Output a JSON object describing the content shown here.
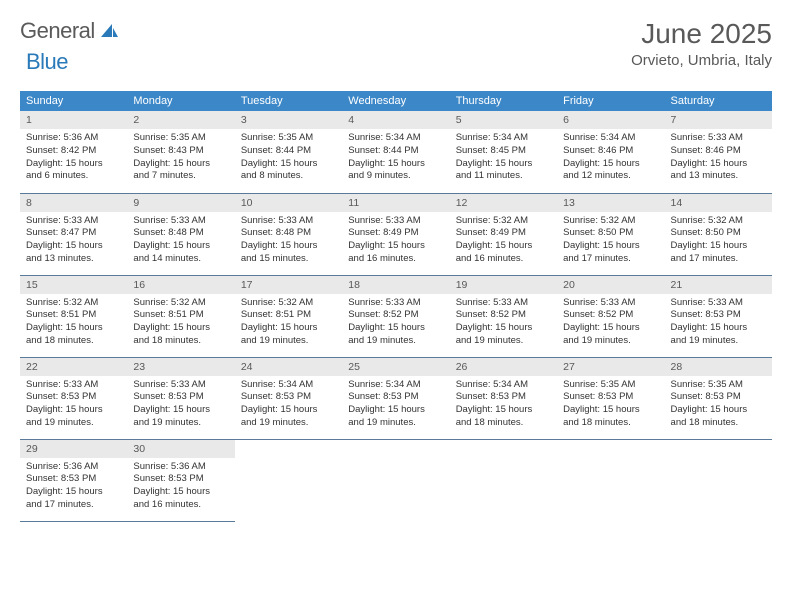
{
  "logo": {
    "general": "General",
    "blue": "Blue"
  },
  "title": "June 2025",
  "subtitle": "Orvieto, Umbria, Italy",
  "colors": {
    "header_bg": "#3c87c7",
    "header_text": "#ffffff",
    "daynum_bg": "#e9e9e9",
    "daynum_text": "#595959",
    "row_border": "#5b7a9a",
    "title_color": "#595959",
    "logo_general": "#5a5a5a",
    "logo_blue": "#2a7ab9",
    "body_text": "#333333",
    "page_bg": "#ffffff"
  },
  "typography": {
    "title_fontsize": 28,
    "subtitle_fontsize": 15,
    "dayheader_fontsize": 11,
    "daynum_fontsize": 10.5,
    "body_fontsize": 9.5
  },
  "weekdays": [
    "Sunday",
    "Monday",
    "Tuesday",
    "Wednesday",
    "Thursday",
    "Friday",
    "Saturday"
  ],
  "weeks": [
    [
      {
        "n": "1",
        "sr": "Sunrise: 5:36 AM",
        "ss": "Sunset: 8:42 PM",
        "d1": "Daylight: 15 hours",
        "d2": "and 6 minutes."
      },
      {
        "n": "2",
        "sr": "Sunrise: 5:35 AM",
        "ss": "Sunset: 8:43 PM",
        "d1": "Daylight: 15 hours",
        "d2": "and 7 minutes."
      },
      {
        "n": "3",
        "sr": "Sunrise: 5:35 AM",
        "ss": "Sunset: 8:44 PM",
        "d1": "Daylight: 15 hours",
        "d2": "and 8 minutes."
      },
      {
        "n": "4",
        "sr": "Sunrise: 5:34 AM",
        "ss": "Sunset: 8:44 PM",
        "d1": "Daylight: 15 hours",
        "d2": "and 9 minutes."
      },
      {
        "n": "5",
        "sr": "Sunrise: 5:34 AM",
        "ss": "Sunset: 8:45 PM",
        "d1": "Daylight: 15 hours",
        "d2": "and 11 minutes."
      },
      {
        "n": "6",
        "sr": "Sunrise: 5:34 AM",
        "ss": "Sunset: 8:46 PM",
        "d1": "Daylight: 15 hours",
        "d2": "and 12 minutes."
      },
      {
        "n": "7",
        "sr": "Sunrise: 5:33 AM",
        "ss": "Sunset: 8:46 PM",
        "d1": "Daylight: 15 hours",
        "d2": "and 13 minutes."
      }
    ],
    [
      {
        "n": "8",
        "sr": "Sunrise: 5:33 AM",
        "ss": "Sunset: 8:47 PM",
        "d1": "Daylight: 15 hours",
        "d2": "and 13 minutes."
      },
      {
        "n": "9",
        "sr": "Sunrise: 5:33 AM",
        "ss": "Sunset: 8:48 PM",
        "d1": "Daylight: 15 hours",
        "d2": "and 14 minutes."
      },
      {
        "n": "10",
        "sr": "Sunrise: 5:33 AM",
        "ss": "Sunset: 8:48 PM",
        "d1": "Daylight: 15 hours",
        "d2": "and 15 minutes."
      },
      {
        "n": "11",
        "sr": "Sunrise: 5:33 AM",
        "ss": "Sunset: 8:49 PM",
        "d1": "Daylight: 15 hours",
        "d2": "and 16 minutes."
      },
      {
        "n": "12",
        "sr": "Sunrise: 5:32 AM",
        "ss": "Sunset: 8:49 PM",
        "d1": "Daylight: 15 hours",
        "d2": "and 16 minutes."
      },
      {
        "n": "13",
        "sr": "Sunrise: 5:32 AM",
        "ss": "Sunset: 8:50 PM",
        "d1": "Daylight: 15 hours",
        "d2": "and 17 minutes."
      },
      {
        "n": "14",
        "sr": "Sunrise: 5:32 AM",
        "ss": "Sunset: 8:50 PM",
        "d1": "Daylight: 15 hours",
        "d2": "and 17 minutes."
      }
    ],
    [
      {
        "n": "15",
        "sr": "Sunrise: 5:32 AM",
        "ss": "Sunset: 8:51 PM",
        "d1": "Daylight: 15 hours",
        "d2": "and 18 minutes."
      },
      {
        "n": "16",
        "sr": "Sunrise: 5:32 AM",
        "ss": "Sunset: 8:51 PM",
        "d1": "Daylight: 15 hours",
        "d2": "and 18 minutes."
      },
      {
        "n": "17",
        "sr": "Sunrise: 5:32 AM",
        "ss": "Sunset: 8:51 PM",
        "d1": "Daylight: 15 hours",
        "d2": "and 19 minutes."
      },
      {
        "n": "18",
        "sr": "Sunrise: 5:33 AM",
        "ss": "Sunset: 8:52 PM",
        "d1": "Daylight: 15 hours",
        "d2": "and 19 minutes."
      },
      {
        "n": "19",
        "sr": "Sunrise: 5:33 AM",
        "ss": "Sunset: 8:52 PM",
        "d1": "Daylight: 15 hours",
        "d2": "and 19 minutes."
      },
      {
        "n": "20",
        "sr": "Sunrise: 5:33 AM",
        "ss": "Sunset: 8:52 PM",
        "d1": "Daylight: 15 hours",
        "d2": "and 19 minutes."
      },
      {
        "n": "21",
        "sr": "Sunrise: 5:33 AM",
        "ss": "Sunset: 8:53 PM",
        "d1": "Daylight: 15 hours",
        "d2": "and 19 minutes."
      }
    ],
    [
      {
        "n": "22",
        "sr": "Sunrise: 5:33 AM",
        "ss": "Sunset: 8:53 PM",
        "d1": "Daylight: 15 hours",
        "d2": "and 19 minutes."
      },
      {
        "n": "23",
        "sr": "Sunrise: 5:33 AM",
        "ss": "Sunset: 8:53 PM",
        "d1": "Daylight: 15 hours",
        "d2": "and 19 minutes."
      },
      {
        "n": "24",
        "sr": "Sunrise: 5:34 AM",
        "ss": "Sunset: 8:53 PM",
        "d1": "Daylight: 15 hours",
        "d2": "and 19 minutes."
      },
      {
        "n": "25",
        "sr": "Sunrise: 5:34 AM",
        "ss": "Sunset: 8:53 PM",
        "d1": "Daylight: 15 hours",
        "d2": "and 19 minutes."
      },
      {
        "n": "26",
        "sr": "Sunrise: 5:34 AM",
        "ss": "Sunset: 8:53 PM",
        "d1": "Daylight: 15 hours",
        "d2": "and 18 minutes."
      },
      {
        "n": "27",
        "sr": "Sunrise: 5:35 AM",
        "ss": "Sunset: 8:53 PM",
        "d1": "Daylight: 15 hours",
        "d2": "and 18 minutes."
      },
      {
        "n": "28",
        "sr": "Sunrise: 5:35 AM",
        "ss": "Sunset: 8:53 PM",
        "d1": "Daylight: 15 hours",
        "d2": "and 18 minutes."
      }
    ],
    [
      {
        "n": "29",
        "sr": "Sunrise: 5:36 AM",
        "ss": "Sunset: 8:53 PM",
        "d1": "Daylight: 15 hours",
        "d2": "and 17 minutes."
      },
      {
        "n": "30",
        "sr": "Sunrise: 5:36 AM",
        "ss": "Sunset: 8:53 PM",
        "d1": "Daylight: 15 hours",
        "d2": "and 16 minutes."
      },
      null,
      null,
      null,
      null,
      null
    ]
  ]
}
